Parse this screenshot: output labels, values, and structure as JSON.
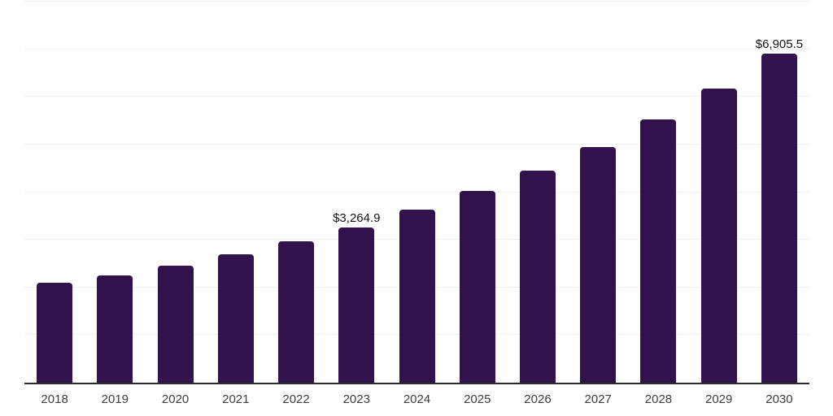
{
  "chart_data": {
    "type": "bar",
    "title": "",
    "xlabel": "",
    "ylabel": "",
    "categories": [
      "2018",
      "2019",
      "2020",
      "2021",
      "2022",
      "2023",
      "2024",
      "2025",
      "2026",
      "2027",
      "2028",
      "2029",
      "2030"
    ],
    "values": [
      2090,
      2260,
      2455,
      2695,
      2975,
      3264.9,
      3630,
      4025,
      4455,
      4950,
      5520,
      6175,
      6905.5
    ],
    "bar_labels": [
      "",
      "",
      "",
      "",
      "",
      "$3,264.9",
      "",
      "",
      "",
      "",
      "",
      "",
      "$6,905.5"
    ],
    "ylim": [
      0,
      8000
    ],
    "y_gridline_step": 1000,
    "y_tick_labels_visible": false,
    "grid": "horizontal",
    "legend": "none"
  },
  "colors": {
    "bar": "#32124D",
    "x_axis_line": "#2b2b2b",
    "gridline": "#f0f0f0",
    "x_tick_label": "#3d3d3d",
    "data_label": "#141414",
    "background": "#ffffff"
  }
}
